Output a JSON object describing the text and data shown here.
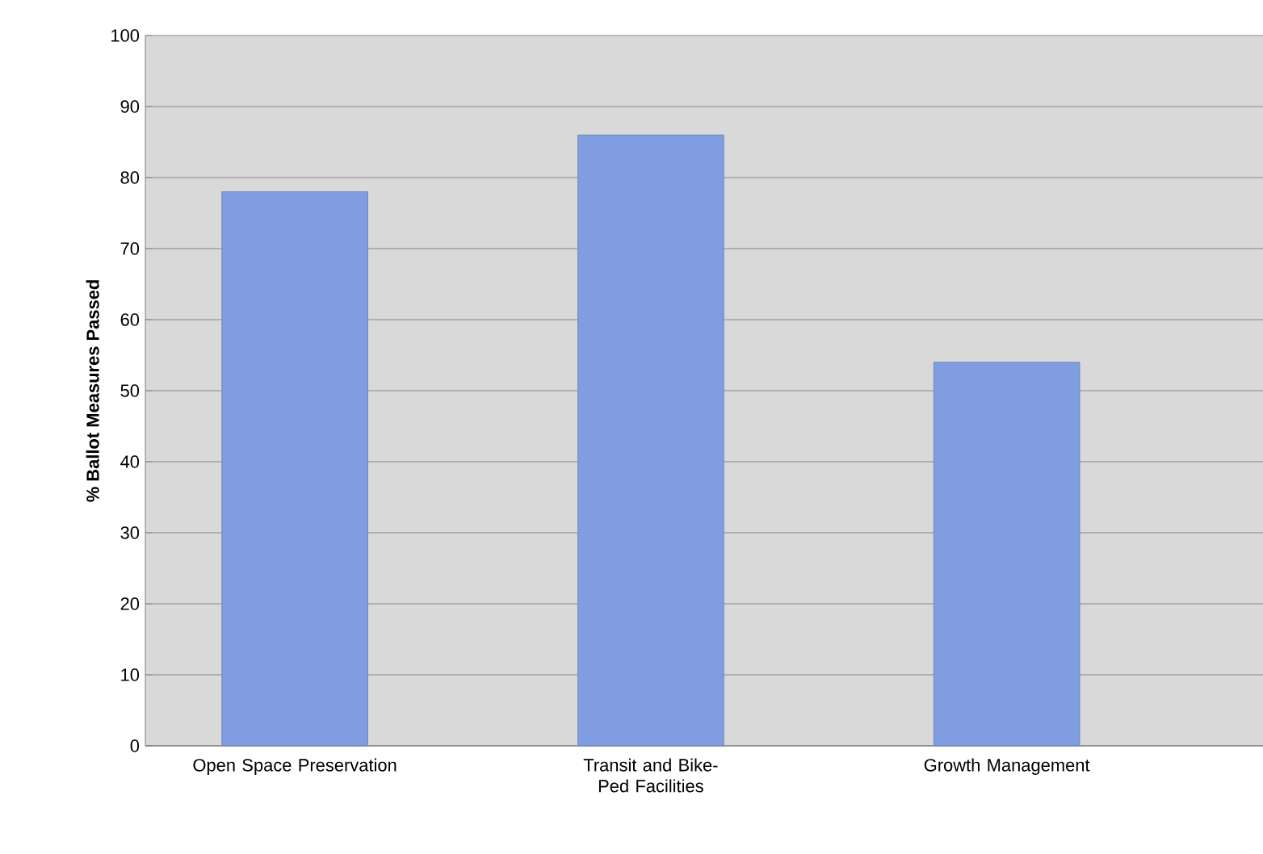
{
  "chart_data": {
    "type": "bar",
    "ylabel": "% Ballot Measures Passed",
    "categories": [
      "Open Space Preservation",
      "Transit and Bike-Ped Facilities",
      "Growth Management"
    ],
    "values": [
      78,
      86,
      54
    ],
    "color": "#7f9de0",
    "ylim": [
      0,
      100
    ],
    "yticks": [
      0,
      10,
      20,
      30,
      40,
      50,
      60,
      70,
      80,
      90,
      100
    ],
    "grid": "y"
  }
}
